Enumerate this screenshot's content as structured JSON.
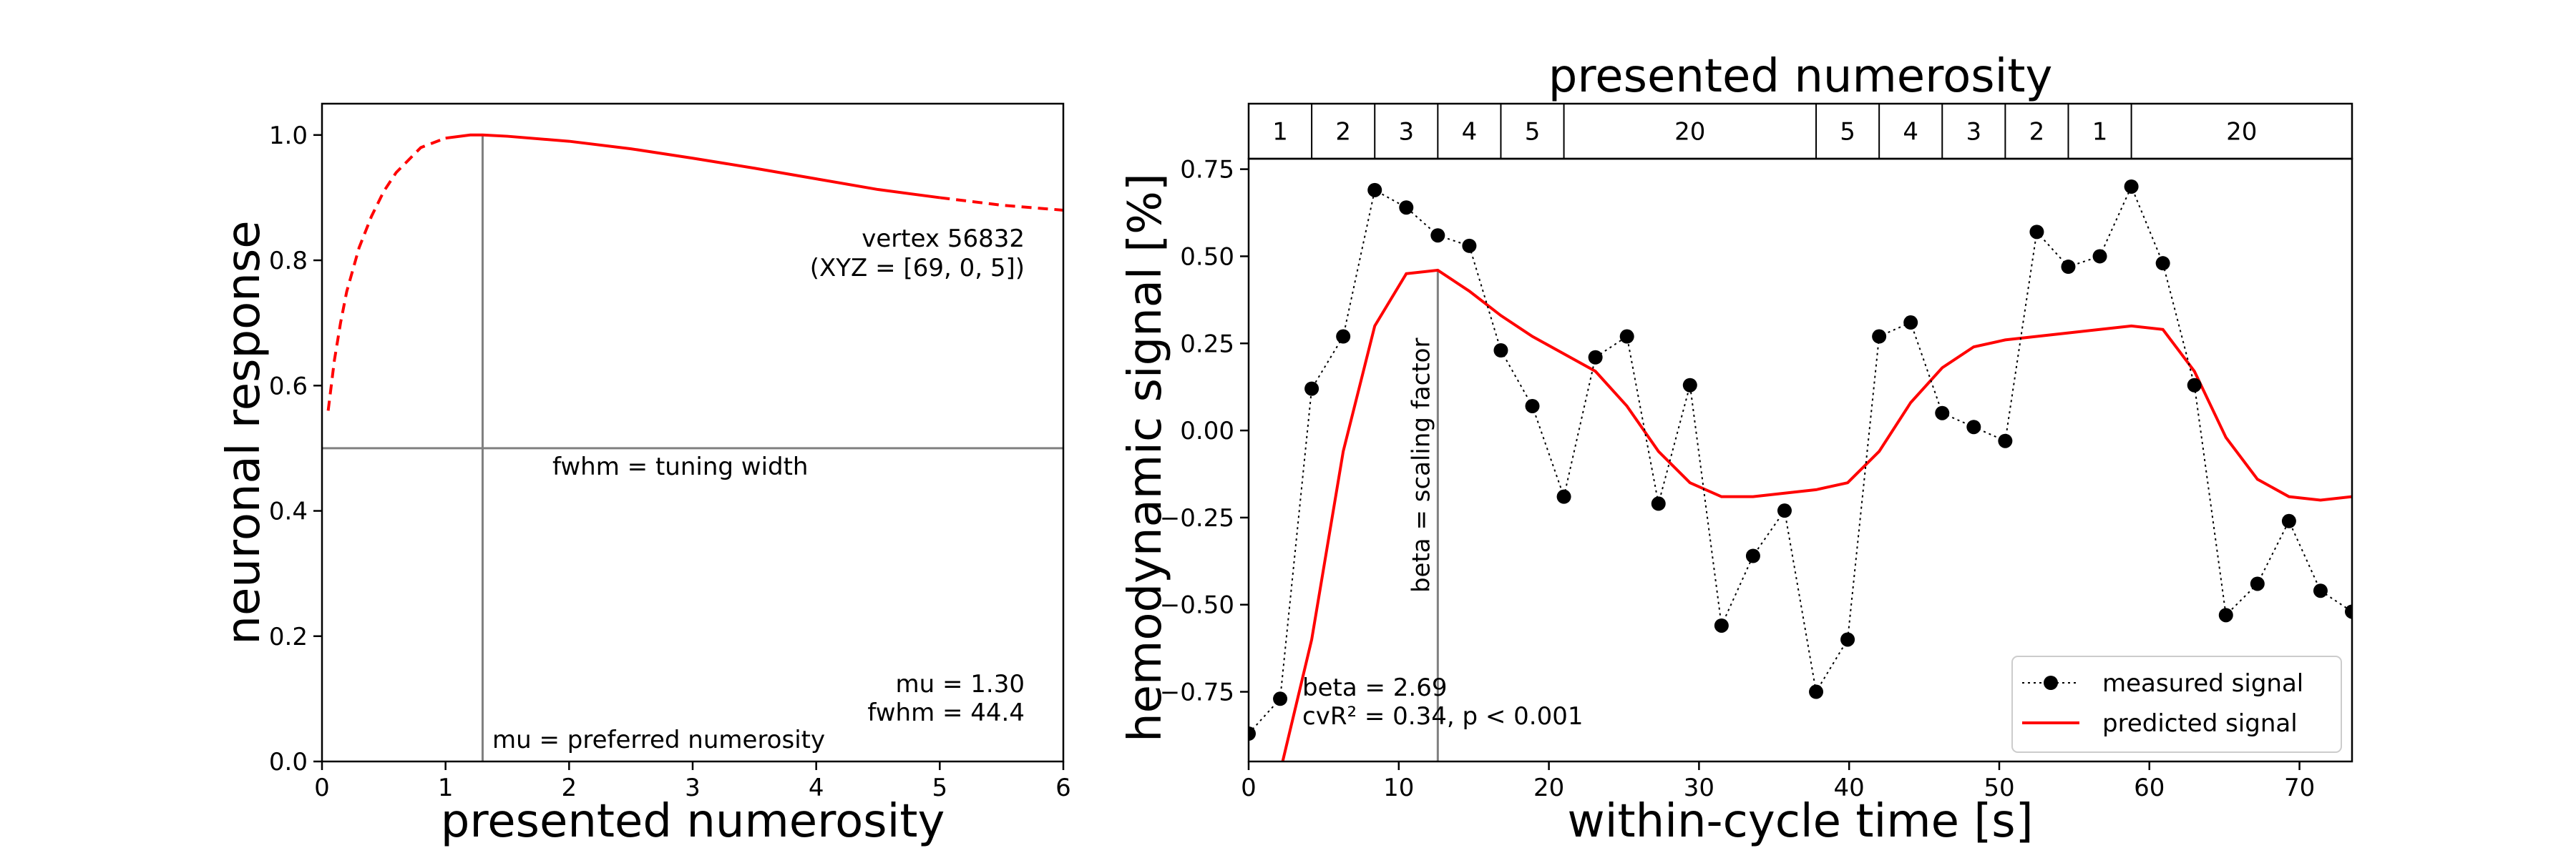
{
  "chart_data": [
    {
      "type": "line",
      "xlabel": "presented numerosity",
      "ylabel": "neuronal response",
      "xlim": [
        0,
        6
      ],
      "ylim": [
        0,
        1.05
      ],
      "x_ticks": [
        0,
        1,
        2,
        3,
        4,
        5,
        6
      ],
      "y_ticks": [
        0.0,
        0.2,
        0.4,
        0.6,
        0.8,
        1.0
      ],
      "grid": false,
      "tuning": {
        "mu": 1.3,
        "fwhm": 44.4
      },
      "series": [
        {
          "color": "#ff0000",
          "x": [
            0.05,
            0.1,
            0.15,
            0.2,
            0.3,
            0.4,
            0.5,
            0.6,
            0.7,
            0.8,
            1.0,
            1.2,
            1.3,
            1.5,
            2.0,
            2.5,
            3.0,
            3.5,
            4.0,
            4.5,
            5.0,
            5.5,
            6.0
          ],
          "values": [
            0.56,
            0.64,
            0.7,
            0.75,
            0.82,
            0.87,
            0.91,
            0.94,
            0.96,
            0.98,
            0.995,
            1.0,
            1.0,
            0.998,
            0.99,
            0.978,
            0.963,
            0.947,
            0.93,
            0.913,
            0.9,
            0.888,
            0.88
          ]
        }
      ],
      "reference_lines": [
        {
          "orientation": "vertical",
          "x": 1.3,
          "label": "mu = preferred numerosity"
        },
        {
          "orientation": "horizontal",
          "y": 0.5,
          "label": "fwhm = tuning width"
        }
      ],
      "annotations": {
        "vertex": "vertex 56832",
        "coords": "(XYZ = [69, 0, 5])",
        "mu_text": "mu = 1.30",
        "fwhm_text": "fwhm = 44.4"
      }
    },
    {
      "type": "line",
      "title": "presented numerosity",
      "xlabel": "within-cycle time [s]",
      "ylabel": "hemodynamic signal [%]",
      "xlim": [
        0,
        73.5
      ],
      "ylim": [
        -0.95,
        0.78
      ],
      "x_ticks": [
        0,
        10,
        20,
        30,
        40,
        50,
        60,
        70
      ],
      "y_ticks": [
        -0.75,
        -0.5,
        -0.25,
        0.0,
        0.25,
        0.5,
        0.75
      ],
      "y_tick_labels": [
        "−0.75",
        "−0.50",
        "−0.25",
        "0.00",
        "0.25",
        "0.50",
        "0.75"
      ],
      "grid": false,
      "legend_position": "lower-right",
      "numerosity_bar": {
        "labels": [
          "1",
          "2",
          "3",
          "4",
          "5",
          "20",
          "5",
          "4",
          "3",
          "2",
          "1",
          "20"
        ],
        "boundaries": [
          0,
          4.2,
          8.4,
          12.6,
          16.8,
          21,
          37.8,
          42,
          46.2,
          50.4,
          54.6,
          58.8,
          73.5
        ]
      },
      "series": [
        {
          "name": "measured signal",
          "color": "#000000",
          "style": "dotted-markers",
          "x": [
            0,
            2.1,
            4.2,
            6.3,
            8.4,
            10.5,
            12.6,
            14.7,
            16.8,
            18.9,
            21,
            23.1,
            25.2,
            27.3,
            29.4,
            31.5,
            33.6,
            35.7,
            37.8,
            39.9,
            42,
            44.1,
            46.2,
            48.3,
            50.4,
            52.5,
            54.6,
            56.7,
            58.8,
            60.9,
            63,
            65.1,
            67.2,
            69.3,
            71.4,
            73.5
          ],
          "values": [
            -0.87,
            -0.77,
            0.12,
            0.27,
            0.69,
            0.64,
            0.56,
            0.53,
            0.23,
            0.07,
            -0.19,
            0.21,
            0.27,
            -0.21,
            0.13,
            -0.56,
            -0.36,
            -0.23,
            -0.75,
            -0.6,
            0.27,
            0.31,
            0.05,
            0.01,
            -0.03,
            0.57,
            0.47,
            0.5,
            0.7,
            0.48,
            0.13,
            -0.53,
            -0.44,
            -0.26,
            -0.46,
            -0.52
          ]
        },
        {
          "name": "predicted signal",
          "color": "#ff0000",
          "style": "solid",
          "x": [
            2.1,
            4.2,
            6.3,
            8.4,
            10.5,
            12.6,
            14.7,
            16.8,
            18.9,
            21,
            23.1,
            25.2,
            27.3,
            29.4,
            31.5,
            33.6,
            35.7,
            37.8,
            39.9,
            42,
            44.1,
            46.2,
            48.3,
            50.4,
            52.5,
            54.6,
            56.7,
            58.8,
            60.9,
            63,
            65.1,
            67.2,
            69.3,
            71.4,
            73.5
          ],
          "values": [
            -0.98,
            -0.6,
            -0.06,
            0.3,
            0.45,
            0.46,
            0.4,
            0.33,
            0.27,
            0.22,
            0.17,
            0.07,
            -0.06,
            -0.15,
            -0.19,
            -0.19,
            -0.18,
            -0.17,
            -0.15,
            -0.06,
            0.08,
            0.18,
            0.24,
            0.26,
            0.27,
            0.28,
            0.29,
            0.3,
            0.29,
            0.17,
            -0.02,
            -0.14,
            -0.19,
            -0.2,
            -0.19
          ]
        }
      ],
      "reference_lines": [
        {
          "orientation": "vertical",
          "x": 12.6,
          "label": "beta = scaling factor"
        }
      ],
      "annotations": {
        "beta_text": "beta = 2.69",
        "cvr_text": "cvR² = 0.34, p < 0.001"
      }
    }
  ]
}
